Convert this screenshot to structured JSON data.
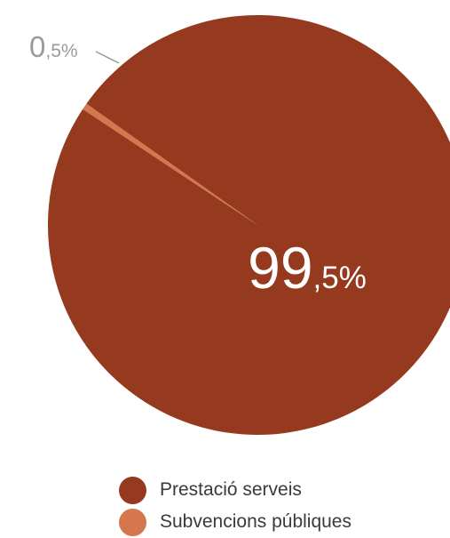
{
  "chart_data": {
    "type": "pie",
    "categories": [
      "Prestació serveis",
      "Subvencions públiques"
    ],
    "values": [
      99.5,
      0.5
    ],
    "labels": [
      {
        "int": "99",
        "dec": ",5%"
      },
      {
        "int": "0",
        "dec": ",5%"
      }
    ],
    "colors": [
      "#953a1f",
      "#d4774f"
    ],
    "legend_position": "bottom"
  },
  "colors": {
    "small_label": "#9a9a9a",
    "big_label": "#ffffff",
    "leader_line": "#9a9a9a"
  }
}
